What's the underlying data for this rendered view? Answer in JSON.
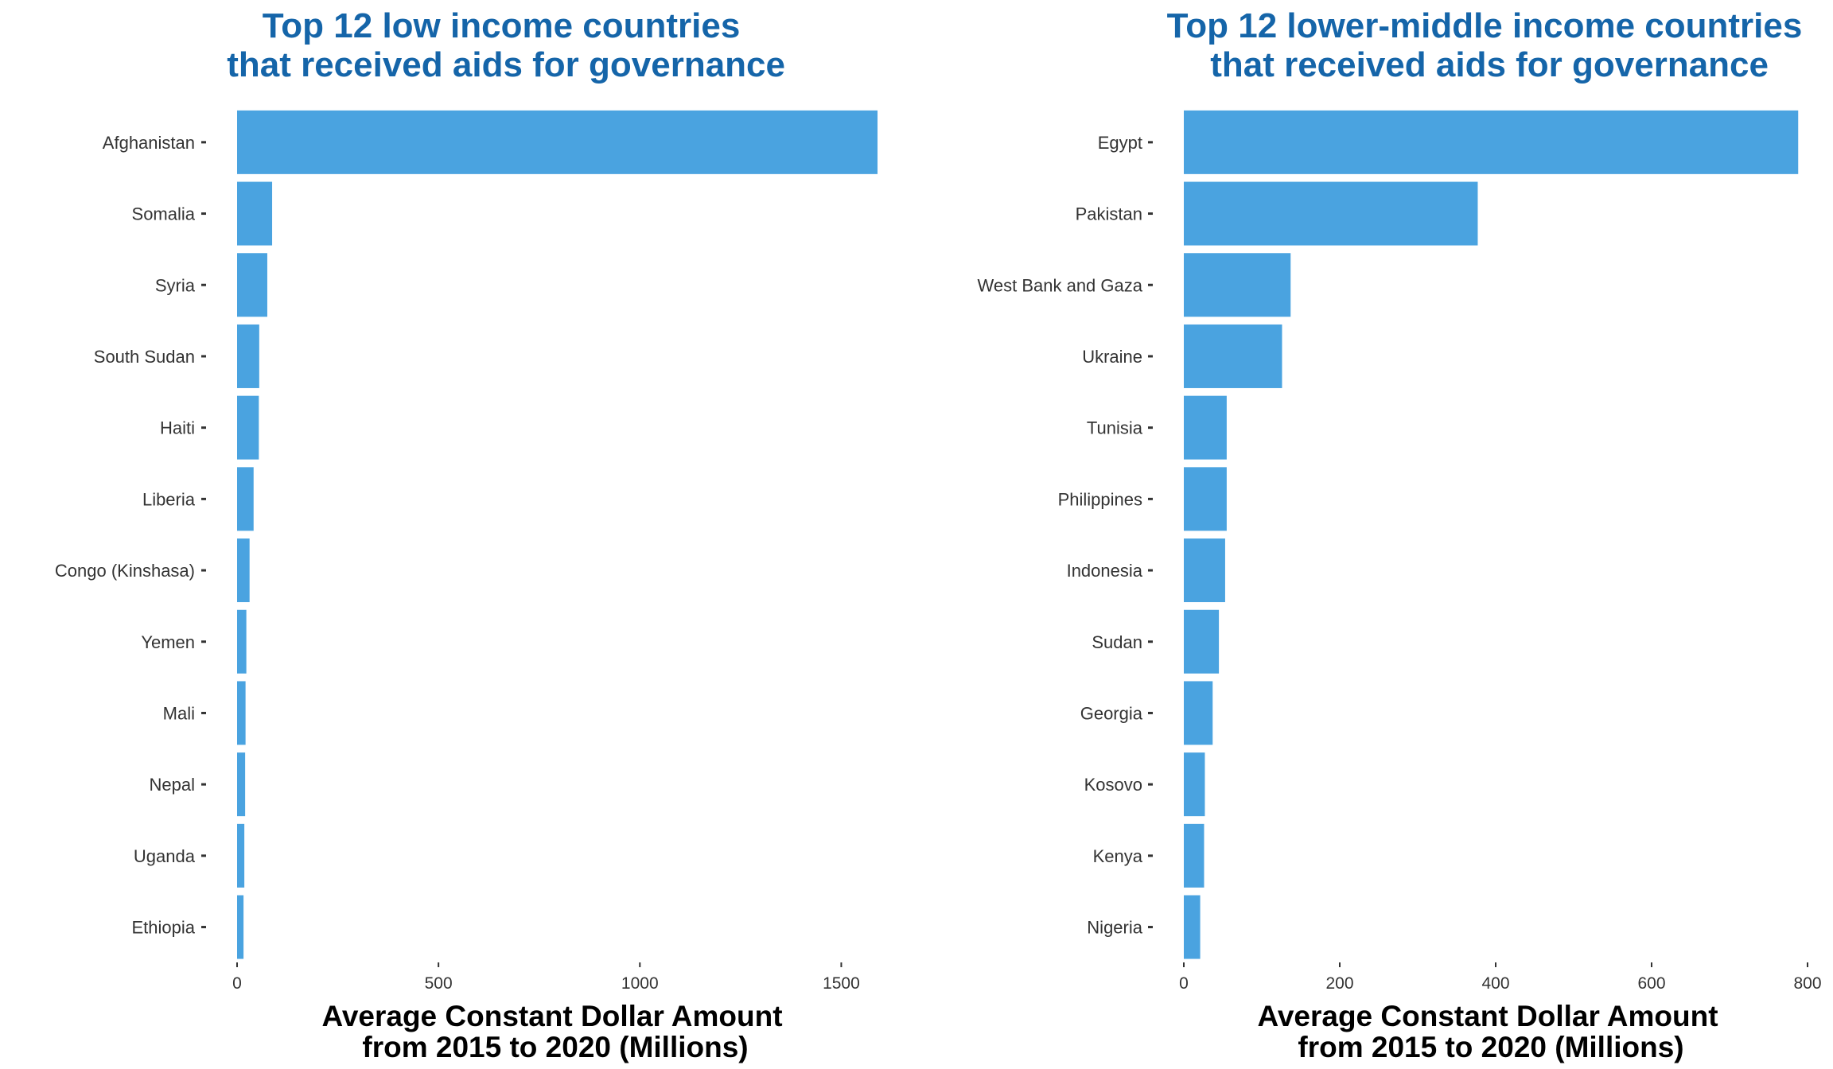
{
  "colors": {
    "bar": "#4aa3e0",
    "title": "#1565a9",
    "axis_text": "#333333",
    "xlabel": "#000000"
  },
  "chart_data": [
    {
      "type": "bar",
      "orientation": "horizontal",
      "title_lines": [
        "Top 12 low income countries",
        " that received aids for governance"
      ],
      "xlabel_lines": [
        "Average Constant Dollar Amount",
        "from 2015 to 2020 (Millions)"
      ],
      "ylabel": "",
      "categories": [
        "Afghanistan",
        "Somalia",
        "Syria",
        "South Sudan",
        "Haiti",
        "Liberia",
        "Congo (Kinshasa)",
        "Yemen",
        "Mali",
        "Nepal",
        "Uganda",
        "Ethiopia"
      ],
      "values": [
        1590,
        87,
        75,
        55,
        54,
        41,
        31,
        23,
        21,
        20,
        18,
        16
      ],
      "xlim": [
        0,
        1590
      ],
      "xticks": [
        0,
        500,
        1000,
        1500
      ],
      "grid": false,
      "legend": "none"
    },
    {
      "type": "bar",
      "orientation": "horizontal",
      "title_lines": [
        "Top 12 lower-middle income countries",
        " that received aids for governance"
      ],
      "xlabel_lines": [
        "Average Constant Dollar Amount",
        "from 2015 to 2020 (Millions)"
      ],
      "ylabel": "",
      "categories": [
        "Egypt",
        "Pakistan",
        "West Bank and Gaza",
        "Ukraine",
        "Tunisia",
        "Philippines",
        "Indonesia",
        "Sudan",
        "Georgia",
        "Kosovo",
        "Kenya",
        "Nigeria"
      ],
      "values": [
        788,
        377,
        137,
        126,
        55,
        55,
        53,
        45,
        37,
        27,
        26,
        21
      ],
      "xlim": [
        0,
        800
      ],
      "xticks": [
        0,
        200,
        400,
        600,
        800
      ],
      "grid": false,
      "legend": "none"
    }
  ]
}
